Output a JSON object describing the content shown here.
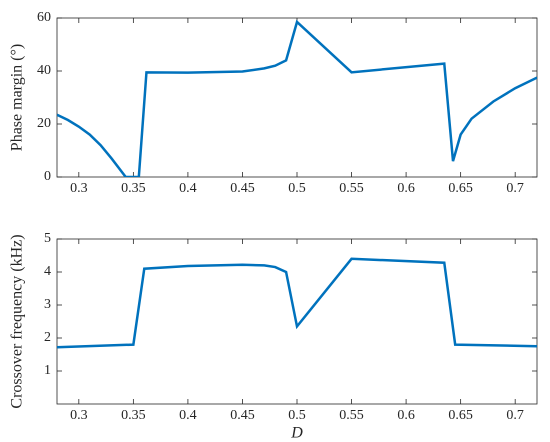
{
  "chart_data": [
    {
      "type": "line",
      "ylabel": "Phase margin (°)",
      "x": [
        0.28,
        0.29,
        0.3,
        0.31,
        0.32,
        0.33,
        0.343,
        0.355,
        0.362,
        0.4,
        0.45,
        0.47,
        0.48,
        0.49,
        0.5,
        0.55,
        0.635,
        0.643,
        0.65,
        0.66,
        0.68,
        0.7,
        0.72
      ],
      "series": [
        {
          "color": "#0072bd",
          "values": [
            23.5,
            21.5,
            19,
            16,
            12,
            7,
            0,
            0,
            39.5,
            39.4,
            39.8,
            41,
            42,
            44,
            58.5,
            39.5,
            42.8,
            6,
            16,
            22,
            28.5,
            33.5,
            37.5
          ]
        }
      ],
      "xlim": [
        0.28,
        0.72
      ],
      "xticks": [
        0.3,
        0.35,
        0.4,
        0.45,
        0.5,
        0.55,
        0.6,
        0.65,
        0.7
      ],
      "ylim": [
        0,
        60
      ],
      "yticks": [
        0,
        20,
        40,
        60
      ]
    },
    {
      "type": "line",
      "ylabel": "Crossover frequency (kHz)",
      "xlabel": "D",
      "x": [
        0.28,
        0.35,
        0.36,
        0.4,
        0.45,
        0.47,
        0.48,
        0.49,
        0.5,
        0.55,
        0.635,
        0.645,
        0.72
      ],
      "series": [
        {
          "color": "#0072bd",
          "values": [
            1.72,
            1.8,
            4.1,
            4.18,
            4.22,
            4.2,
            4.15,
            4.0,
            2.35,
            4.4,
            4.28,
            1.8,
            1.75
          ]
        }
      ],
      "xlim": [
        0.28,
        0.72
      ],
      "xticks": [
        0.3,
        0.35,
        0.4,
        0.45,
        0.5,
        0.55,
        0.6,
        0.65,
        0.7
      ],
      "ylim": [
        0,
        5
      ],
      "yticks": [
        1,
        2,
        3,
        4,
        5
      ]
    }
  ]
}
